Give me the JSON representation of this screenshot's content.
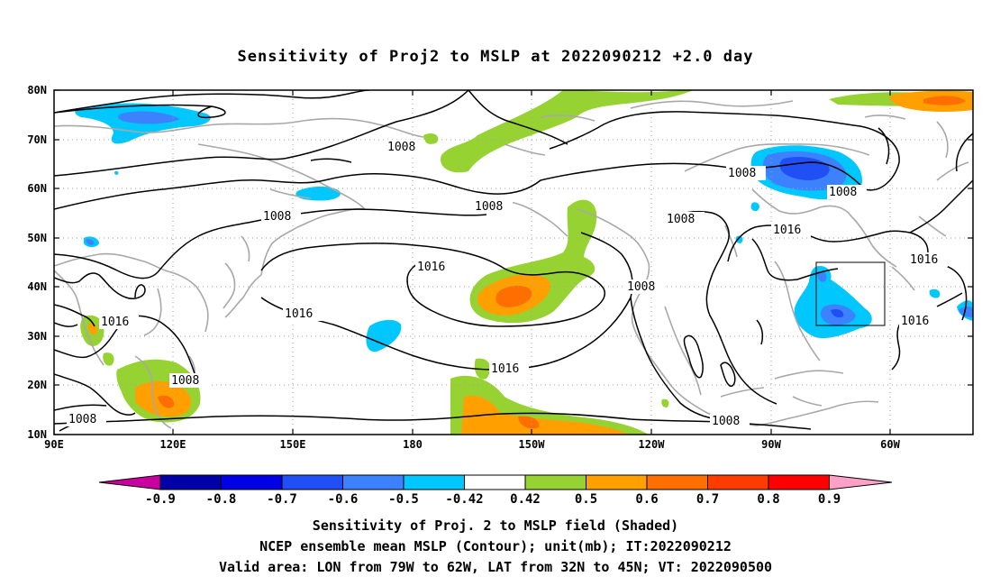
{
  "title": "Sensitivity of Proj2 to MSLP at 2022090212 +2.0 day",
  "lat_labels": [
    "80N",
    "70N",
    "60N",
    "50N",
    "40N",
    "30N",
    "20N",
    "10N"
  ],
  "lon_labels": [
    "90E",
    "120E",
    "150E",
    "180",
    "150W",
    "120W",
    "90W",
    "60W"
  ],
  "contour_labels": [
    "1008",
    "1008",
    "1008",
    "1008",
    "1008",
    "1008",
    "1008",
    "1008",
    "1008",
    "1016",
    "1016",
    "1016",
    "1016",
    "1016",
    "1016",
    "1016",
    "1008"
  ],
  "colorbar": {
    "ticks": [
      "-0.9",
      "-0.8",
      "-0.7",
      "-0.6",
      "-0.5",
      "-0.42",
      "0.42",
      "0.5",
      "0.6",
      "0.7",
      "0.8",
      "0.9"
    ],
    "colors": {
      "below": "#c800a0",
      "c1": "#0000a8",
      "c2": "#0000e6",
      "c3": "#2050f5",
      "c4": "#3c82ff",
      "c5": "#00c8ff",
      "c6": "#ffffff",
      "c7": "#96d232",
      "c8": "#ffa000",
      "c9": "#ff6e00",
      "c10": "#ff3c00",
      "c11": "#ff0000",
      "above": "#ffa0c8"
    }
  },
  "valid_area_box": {
    "lon": [
      "79W",
      "62W"
    ],
    "lat": [
      "32N",
      "45N"
    ]
  },
  "captions": {
    "line1": "Sensitivity of Proj. 2 to MSLP field (Shaded)",
    "line2": "NCEP ensemble mean MSLP (Contour); unit(mb); IT:2022090212",
    "line3": "Valid area: LON from 79W to 62W, LAT from 32N to 45N; VT: 2022090500"
  }
}
